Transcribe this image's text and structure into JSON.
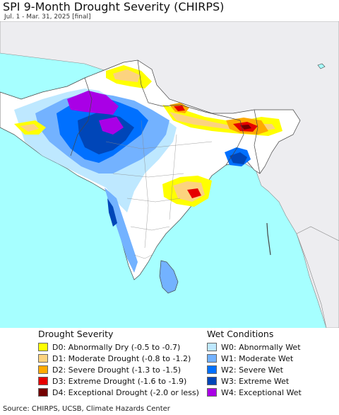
{
  "header": {
    "title": "SPI 9-Month Drought Severity (CHIRPS)",
    "subtitle": "Jul. 1 - Mar. 31, 2025 [final]"
  },
  "legend": {
    "drought": {
      "heading": "Drought Severity",
      "items": [
        {
          "label": "D0: Abnormally Dry (-0.5 to -0.7)",
          "color": "#ffff00"
        },
        {
          "label": "D1: Moderate Drought (-0.8 to -1.2)",
          "color": "#fcd37f"
        },
        {
          "label": "D2: Severe Drought (-1.3 to -1.5)",
          "color": "#ffaa00"
        },
        {
          "label": "D3: Extreme Drought (-1.6 to -1.9)",
          "color": "#e60000"
        },
        {
          "label": "D4: Exceptional Drought (-2.0 or less)",
          "color": "#730000"
        }
      ]
    },
    "wet": {
      "heading": "Wet Conditions",
      "items": [
        {
          "label": "W0: Abnormally Wet",
          "color": "#bee8ff"
        },
        {
          "label": "W1: Moderate Wet",
          "color": "#73b2ff"
        },
        {
          "label": "W2: Severe Wet",
          "color": "#0070ff"
        },
        {
          "label": "W3: Extreme Wet",
          "color": "#0046b8"
        },
        {
          "label": "W4: Exceptional Wet",
          "color": "#a900e6"
        }
      ]
    }
  },
  "footer": {
    "source": "Source: CHIRPS, UCSB, Climate Hazards Center"
  },
  "colors": {
    "ocean": "#a6ffff",
    "land_outside": "#ededf0",
    "land_normal": "#ffffff",
    "border": "#444444"
  }
}
